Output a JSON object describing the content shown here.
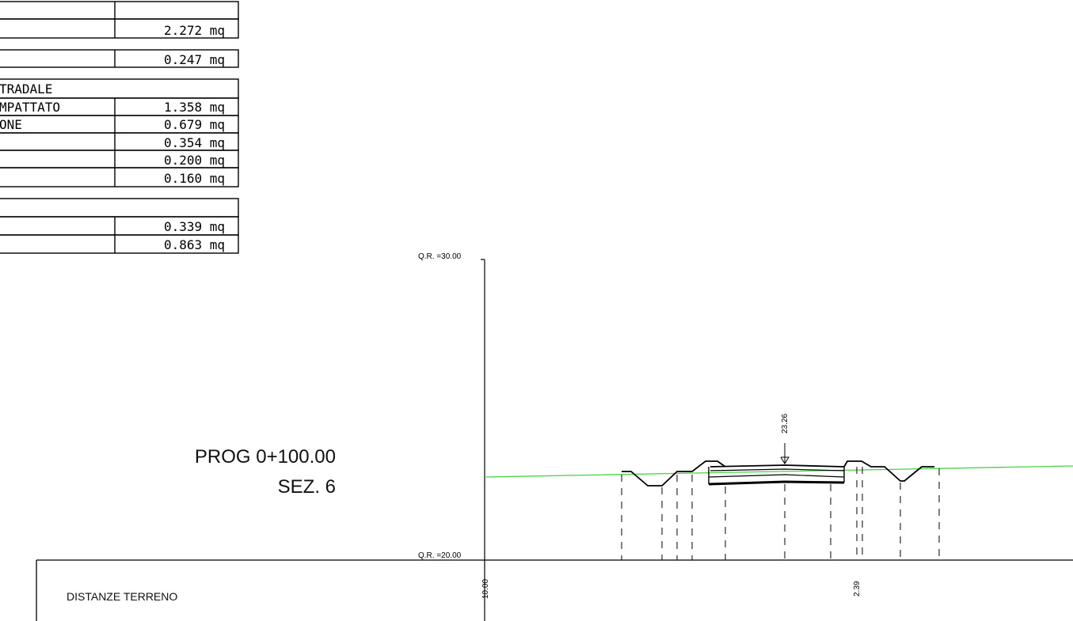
{
  "table": {
    "rows": [
      {
        "label": "",
        "value": ""
      },
      {
        "label": "",
        "value": "2.272 mq"
      },
      {
        "label": "",
        "value": "0.247 mq"
      },
      {
        "label": "TRADALE",
        "value": ""
      },
      {
        "label": "MPATTATO",
        "value": "1.358 mq"
      },
      {
        "label": "ONE",
        "value": "0.679 mq"
      },
      {
        "label": "",
        "value": "0.354 mq"
      },
      {
        "label": "",
        "value": "0.200 mq"
      },
      {
        "label": "",
        "value": "0.160 mq"
      },
      {
        "label": "",
        "value": ""
      },
      {
        "label": "",
        "value": "0.339 mq"
      },
      {
        "label": "",
        "value": "0.863 mq"
      }
    ]
  },
  "section": {
    "prog_label": "PROG 0+100.00",
    "sez_label": "SEZ. 6",
    "qr_top": "Q.R. =30.00",
    "qr_bottom": "Q.R. =20.00",
    "elevation_label": "23.26",
    "distance_label_left": "10.00",
    "distance_label_right": "2.39",
    "ground_line_color": "#46d446"
  },
  "footer": {
    "distanze_label": "DISTANZE TERRENO"
  }
}
